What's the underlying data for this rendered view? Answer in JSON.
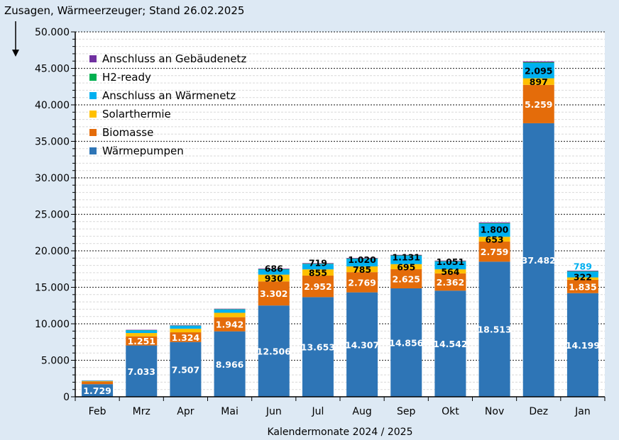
{
  "chart_data": {
    "type": "bar",
    "stacked": true,
    "title": "Zusagen, Wärmeerzeuger; Stand 26.02.2025",
    "xlabel": "Kalendermonate 2024 / 2025",
    "ylabel": "",
    "ylim": [
      0,
      50000
    ],
    "yticks": [
      "0",
      "5.000",
      "10.000",
      "15.000",
      "20.000",
      "25.000",
      "30.000",
      "35.000",
      "40.000",
      "45.000",
      "50.000"
    ],
    "grid": true,
    "legend_position": "top-left",
    "categories": [
      "Feb",
      "Mrz",
      "Apr",
      "Mai",
      "Jun",
      "Jul",
      "Aug",
      "Sep",
      "Okt",
      "Nov",
      "Dez",
      "Jan"
    ],
    "series": [
      {
        "name": "Wärmepumpen",
        "color": "#2e75b6",
        "values": [
          1729,
          7033,
          7507,
          8966,
          12506,
          13653,
          14307,
          14856,
          14542,
          18513,
          37482,
          14199
        ],
        "labels": [
          "1.729",
          "7.033",
          "7.507",
          "8.966",
          "12.506",
          "13.653",
          "14.307",
          "14.856",
          "14.542",
          "18.513",
          "37.482",
          "14.199"
        ],
        "label_color": "#ffffff"
      },
      {
        "name": "Biomasse",
        "color": "#e46c0a",
        "values": [
          350,
          1251,
          1324,
          1942,
          3302,
          2952,
          2769,
          2625,
          2362,
          2759,
          5259,
          1835
        ],
        "labels": [
          "",
          "1.251",
          "1.324",
          "1.942",
          "3.302",
          "2.952",
          "2.769",
          "2.625",
          "2.362",
          "2.759",
          "5.259",
          "1.835"
        ],
        "label_color": "#ffffff"
      },
      {
        "name": "Solarthermie",
        "color": "#ffc000",
        "values": [
          60,
          450,
          500,
          600,
          930,
          855,
          785,
          695,
          564,
          653,
          897,
          322
        ],
        "labels": [
          "",
          "",
          "",
          "",
          "930",
          "855",
          "785",
          "695",
          "564",
          "653",
          "897",
          "322"
        ],
        "label_color": "#000000"
      },
      {
        "name": "Anschluss an Wärmenetz",
        "color": "#00b0f0",
        "values": [
          40,
          350,
          400,
          450,
          686,
          719,
          1020,
          1131,
          1051,
          1800,
          2095,
          789
        ],
        "labels": [
          "",
          "",
          "",
          "",
          "686",
          "719",
          "1.020",
          "1.131",
          "1.051",
          "1.800",
          "2.095",
          "789"
        ],
        "label_color": "#000000"
      },
      {
        "name": "H2-ready",
        "color": "#00b050",
        "values": [
          20,
          40,
          40,
          50,
          60,
          60,
          60,
          60,
          60,
          70,
          90,
          60
        ],
        "labels": []
      },
      {
        "name": "Anschluss an Gebäudenetz",
        "color": "#7030a0",
        "values": [
          30,
          50,
          50,
          60,
          80,
          80,
          80,
          80,
          80,
          100,
          130,
          80
        ],
        "labels": []
      }
    ]
  }
}
